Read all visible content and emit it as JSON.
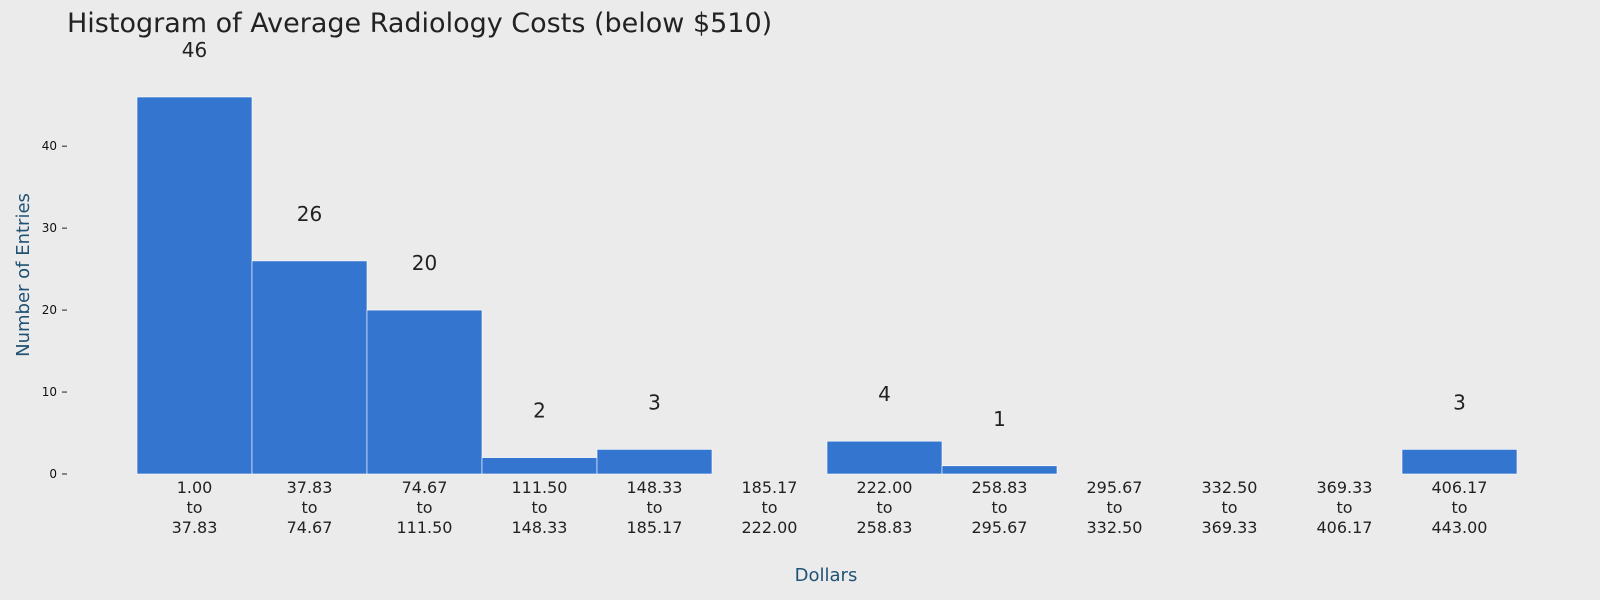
{
  "chart_data": {
    "type": "bar",
    "title": "Histogram of Average Radiology Costs (below $510)",
    "xlabel": "Dollars",
    "ylabel": "Number of Entries",
    "categories": [
      [
        "1.00",
        "to",
        "37.83"
      ],
      [
        "37.83",
        "to",
        "74.67"
      ],
      [
        "74.67",
        "to",
        "111.50"
      ],
      [
        "111.50",
        "to",
        "148.33"
      ],
      [
        "148.33",
        "to",
        "185.17"
      ],
      [
        "185.17",
        "to",
        "222.00"
      ],
      [
        "222.00",
        "to",
        "258.83"
      ],
      [
        "258.83",
        "to",
        "295.67"
      ],
      [
        "295.67",
        "to",
        "332.50"
      ],
      [
        "332.50",
        "to",
        "369.33"
      ],
      [
        "369.33",
        "to",
        "406.17"
      ],
      [
        "406.17",
        "to",
        "443.00"
      ]
    ],
    "values": [
      46,
      26,
      20,
      2,
      3,
      0,
      4,
      1,
      0,
      0,
      0,
      3
    ],
    "data_labels": [
      "46",
      "26",
      "20",
      "2",
      "3",
      "",
      "4",
      "1",
      "",
      "",
      "",
      "3"
    ],
    "yticks": [
      0,
      10,
      20,
      30,
      40
    ],
    "ylim": [
      0,
      46
    ],
    "grid": false,
    "colors": {
      "bar": "#3475d0",
      "bar_edge": "#ffffff",
      "background": "#ebebeb",
      "axis_label": "#1f5274",
      "text": "#222222"
    }
  }
}
